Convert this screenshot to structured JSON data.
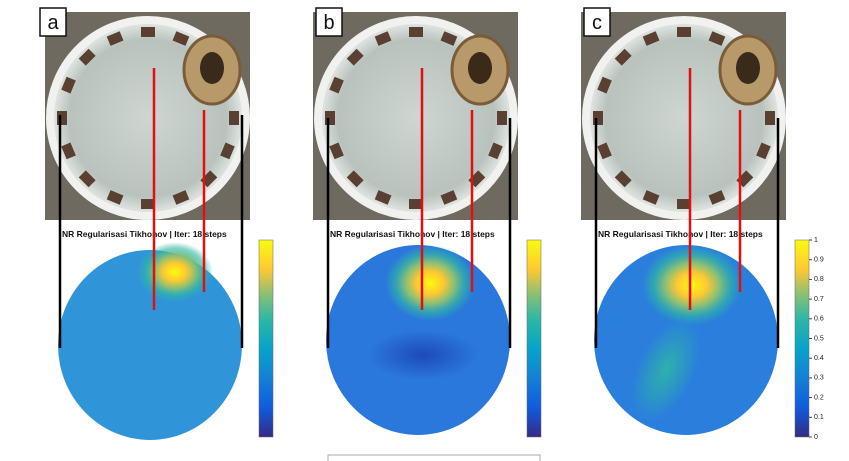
{
  "panels": [
    {
      "label": "a",
      "title": "NR Regularisasi Tikhonov | Iter: 18 steps"
    },
    {
      "label": "b",
      "title": "NR Regularisasi Tikhonov | Iter: 18 steps"
    },
    {
      "label": "c",
      "title": "NR Regularisasi Tikhonov | Iter: 18 steps"
    }
  ],
  "colorbar": {
    "ticks": [
      1,
      0.9,
      0.8,
      0.7,
      0.6,
      0.5,
      0.4,
      0.3,
      0.2,
      0.1,
      0
    ]
  }
}
